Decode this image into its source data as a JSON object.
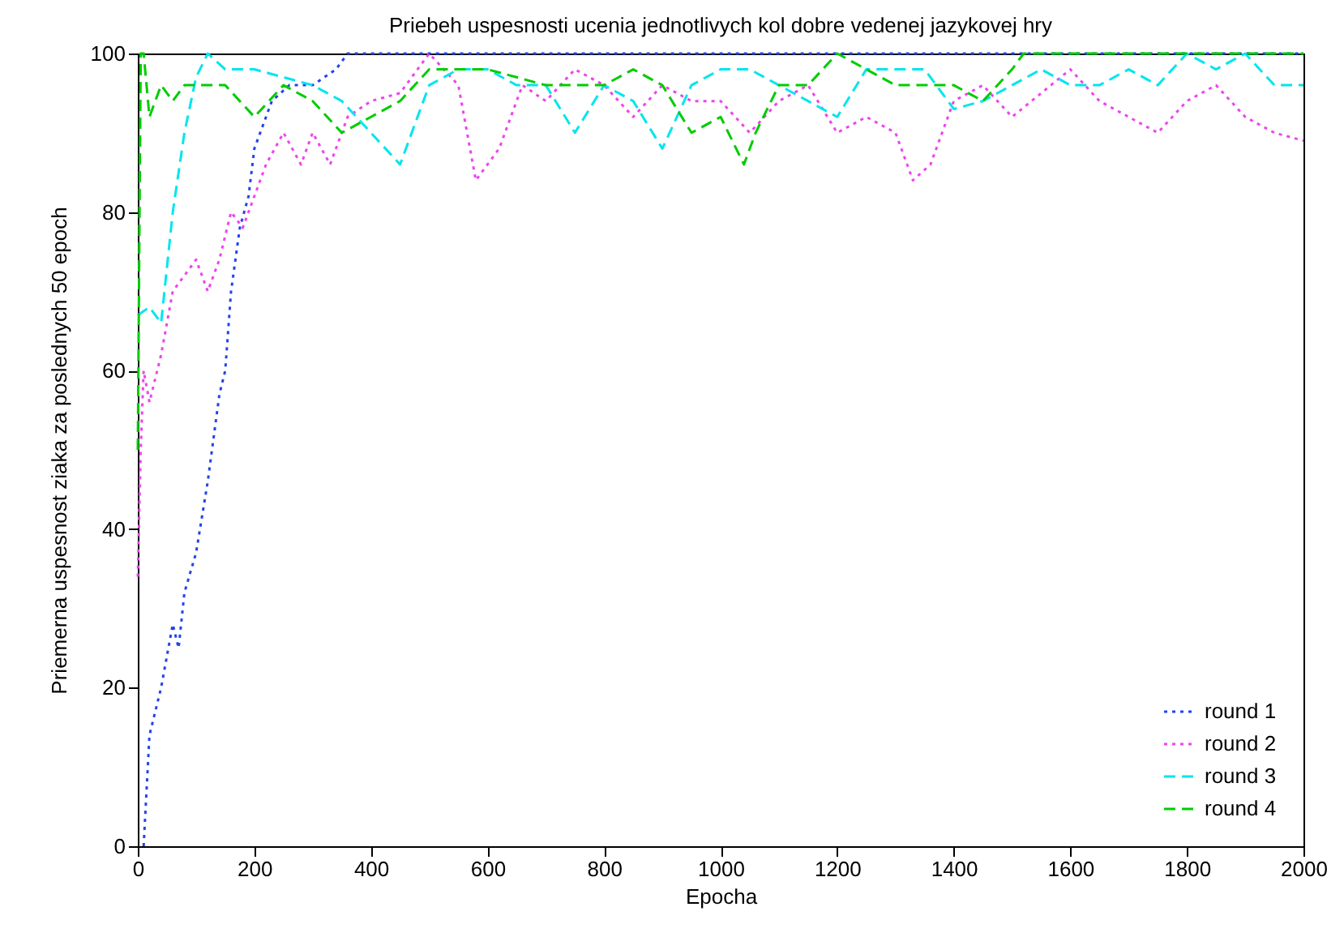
{
  "chart_data": {
    "type": "line",
    "title": "Priebeh uspesnosti ucenia jednotlivych kol dobre vedenej jazykovej hry",
    "xlabel": "Epocha",
    "ylabel": "Priemerna uspesnost ziaka za poslednych 50 epoch",
    "xlim": [
      0,
      2000
    ],
    "ylim": [
      0,
      100
    ],
    "xticks": [
      0,
      200,
      400,
      600,
      800,
      1000,
      1200,
      1400,
      1600,
      1800,
      2000
    ],
    "yticks": [
      0,
      20,
      40,
      60,
      80,
      100
    ],
    "grid": false,
    "legend": "bottom right",
    "series": [
      {
        "name": "round 1",
        "color": "#2244ee",
        "line_style": "dotted",
        "x": [
          10,
          20,
          30,
          40,
          50,
          60,
          70,
          80,
          100,
          120,
          140,
          150,
          160,
          175,
          190,
          200,
          230,
          260,
          300,
          340,
          360,
          500,
          1000,
          1500,
          2000
        ],
        "values": [
          0,
          14,
          17,
          20,
          24,
          28,
          25,
          32,
          37,
          46,
          57,
          60,
          70,
          78,
          82,
          88,
          94,
          96,
          96,
          98,
          100,
          100,
          100,
          100,
          100
        ]
      },
      {
        "name": "round 2",
        "color": "#ee44ee",
        "line_style": "dotted",
        "x": [
          0,
          5,
          10,
          20,
          40,
          60,
          80,
          100,
          120,
          140,
          160,
          180,
          200,
          220,
          250,
          280,
          300,
          330,
          360,
          400,
          450,
          500,
          550,
          580,
          620,
          660,
          700,
          750,
          800,
          850,
          900,
          950,
          1000,
          1050,
          1100,
          1150,
          1200,
          1250,
          1300,
          1330,
          1360,
          1400,
          1450,
          1500,
          1550,
          1600,
          1650,
          1700,
          1750,
          1800,
          1850,
          1900,
          1950,
          2000
        ],
        "values": [
          34,
          50,
          60,
          56,
          62,
          70,
          72,
          74,
          70,
          74,
          80,
          78,
          82,
          86,
          90,
          86,
          90,
          86,
          92,
          94,
          95,
          100,
          96,
          84,
          88,
          96,
          94,
          98,
          96,
          92,
          96,
          94,
          94,
          90,
          94,
          96,
          90,
          92,
          90,
          84,
          86,
          94,
          96,
          92,
          95,
          98,
          94,
          92,
          90,
          94,
          96,
          92,
          90,
          89
        ]
      },
      {
        "name": "round 3",
        "color": "#00e5ee",
        "line_style": "dashed",
        "x": [
          0,
          20,
          40,
          60,
          80,
          100,
          120,
          150,
          200,
          250,
          300,
          350,
          400,
          450,
          500,
          550,
          600,
          650,
          700,
          750,
          800,
          850,
          900,
          950,
          1000,
          1050,
          1100,
          1150,
          1200,
          1250,
          1300,
          1350,
          1400,
          1450,
          1500,
          1550,
          1600,
          1650,
          1700,
          1750,
          1800,
          1850,
          1900,
          1950,
          2000
        ],
        "values": [
          67,
          68,
          66,
          80,
          90,
          97,
          100,
          98,
          98,
          97,
          96,
          94,
          90,
          86,
          96,
          98,
          98,
          96,
          96,
          90,
          96,
          94,
          88,
          96,
          98,
          98,
          96,
          94,
          92,
          98,
          98,
          98,
          93,
          94,
          96,
          98,
          96,
          96,
          98,
          96,
          100,
          98,
          100,
          96,
          96
        ]
      },
      {
        "name": "round 4",
        "color": "#00cc00",
        "line_style": "dashed",
        "x": [
          0,
          5,
          10,
          20,
          40,
          60,
          80,
          100,
          150,
          200,
          250,
          300,
          350,
          400,
          450,
          500,
          600,
          700,
          800,
          850,
          900,
          950,
          1000,
          1040,
          1060,
          1100,
          1150,
          1200,
          1300,
          1400,
          1450,
          1500,
          1520,
          2000
        ],
        "values": [
          50,
          100,
          100,
          92,
          96,
          94,
          96,
          96,
          96,
          92,
          96,
          94,
          90,
          92,
          94,
          98,
          98,
          96,
          96,
          98,
          96,
          90,
          92,
          86,
          90,
          96,
          96,
          100,
          96,
          96,
          94,
          98,
          100,
          100
        ]
      }
    ]
  }
}
